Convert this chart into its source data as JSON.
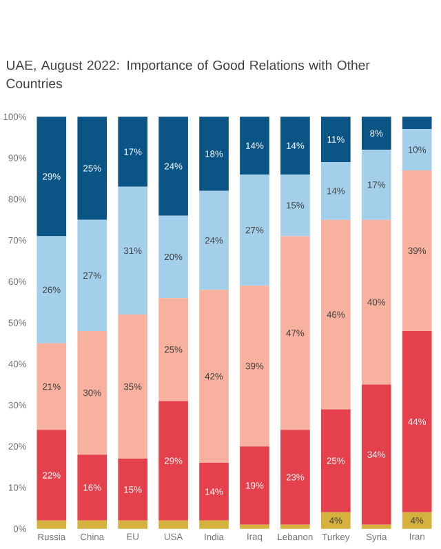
{
  "chart_data": {
    "type": "bar",
    "stacked": true,
    "title": "UAE, August 2022: Importance of Good Relations with Other Countries",
    "categories": [
      "Russia",
      "China",
      "EU",
      "USA",
      "India",
      "Iraq",
      "Lebanon",
      "Turkey",
      "Syria",
      "Iran"
    ],
    "series": [
      {
        "color": "#d5b13d",
        "values": [
          2,
          2,
          2,
          2,
          2,
          1,
          1,
          4,
          1,
          4
        ],
        "value_labels": [
          null,
          null,
          null,
          null,
          null,
          null,
          null,
          "4%",
          null,
          "4%"
        ]
      },
      {
        "color": "#e5414c",
        "values": [
          22,
          16,
          15,
          29,
          14,
          19,
          23,
          25,
          34,
          44
        ],
        "value_labels": [
          "22%",
          "16%",
          "15%",
          "29%",
          "14%",
          "19%",
          "23%",
          "25%",
          "34%",
          "44%"
        ]
      },
      {
        "color": "#f8b09f",
        "values": [
          21,
          30,
          35,
          25,
          42,
          39,
          47,
          46,
          40,
          39
        ],
        "value_labels": [
          "21%",
          "30%",
          "35%",
          "25%",
          "42%",
          "39%",
          "47%",
          "46%",
          "40%",
          "39%"
        ]
      },
      {
        "color": "#a3cfeb",
        "values": [
          26,
          27,
          31,
          20,
          24,
          27,
          15,
          14,
          17,
          10
        ],
        "value_labels": [
          "26%",
          "27%",
          "31%",
          "20%",
          "24%",
          "27%",
          "15%",
          "14%",
          "17%",
          "10%"
        ]
      },
      {
        "color": "#0a5585",
        "values": [
          29,
          25,
          17,
          24,
          18,
          14,
          14,
          11,
          8,
          3
        ],
        "value_labels": [
          "29%",
          "25%",
          "17%",
          "24%",
          "18%",
          "14%",
          "14%",
          "11%",
          "8%",
          null
        ]
      }
    ],
    "ylim": [
      0,
      100
    ],
    "yticks": [
      {
        "value": 0,
        "label": "0%"
      },
      {
        "value": 10,
        "label": "10%"
      },
      {
        "value": 20,
        "label": "20%"
      },
      {
        "value": 30,
        "label": "30%"
      },
      {
        "value": 40,
        "label": "40%"
      },
      {
        "value": 50,
        "label": "50%"
      },
      {
        "value": 60,
        "label": "60%"
      },
      {
        "value": 70,
        "label": "70%"
      },
      {
        "value": 80,
        "label": "80%"
      },
      {
        "value": 90,
        "label": "90%"
      },
      {
        "value": 100,
        "label": "100%"
      }
    ]
  }
}
